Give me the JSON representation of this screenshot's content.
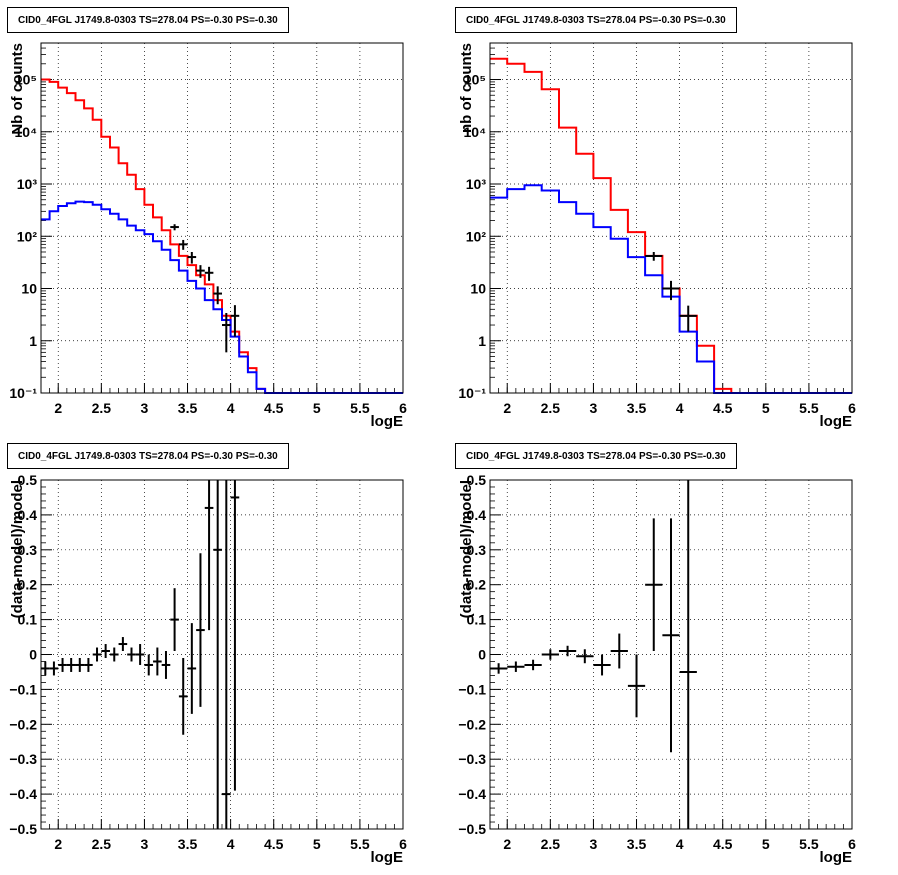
{
  "chart_data": [
    {
      "type": "line",
      "title": "CID0_4FGL J1749.8-0303 TS=278.04 PS=-0.30 PS=-0.30",
      "xlabel": "logE",
      "ylabel": "Nb of counts",
      "xlim": [
        1.8,
        6.0
      ],
      "ylim": [
        0.1,
        500000
      ],
      "yscale": "log",
      "grid": true,
      "xticks": [
        "2",
        "2.5",
        "3",
        "3.5",
        "4",
        "4.5",
        "5",
        "5.5",
        "6"
      ],
      "yticks": [
        "10⁻¹",
        "1",
        "10",
        "10²",
        "10³",
        "10⁴",
        "10⁵"
      ],
      "series": [
        {
          "color": "#ff0000",
          "style": "step",
          "bin_width": 0.1,
          "x": [
            1.8,
            1.9,
            2.0,
            2.1,
            2.2,
            2.3,
            2.4,
            2.5,
            2.6,
            2.7,
            2.8,
            2.9,
            3.0,
            3.1,
            3.2,
            3.3,
            3.4,
            3.5,
            3.6,
            3.7,
            3.8,
            3.9,
            4.0,
            4.1,
            4.2,
            4.3,
            4.4,
            4.5,
            4.6,
            4.7,
            4.8,
            4.9,
            5.0,
            5.1,
            5.2,
            5.3,
            5.4,
            5.5,
            5.6,
            5.7,
            5.8,
            5.9
          ],
          "values": [
            100000,
            90000,
            70000,
            55000,
            40000,
            28000,
            17000,
            8000,
            5000,
            2500,
            1500,
            800,
            400,
            230,
            130,
            70,
            42,
            28,
            18,
            12,
            6,
            3,
            1.5,
            0.6,
            0.3,
            0.12,
            0.1,
            0.1,
            0.1,
            0.1,
            0.1,
            0.1,
            0.1,
            0.1,
            0.1,
            0.1,
            0.1,
            0.1,
            0.1,
            0.1,
            0.1,
            0.1
          ]
        },
        {
          "color": "#0000ff",
          "style": "step",
          "bin_width": 0.1,
          "x": [
            1.8,
            1.9,
            2.0,
            2.1,
            2.2,
            2.3,
            2.4,
            2.5,
            2.6,
            2.7,
            2.8,
            2.9,
            3.0,
            3.1,
            3.2,
            3.3,
            3.4,
            3.5,
            3.6,
            3.7,
            3.8,
            3.9,
            4.0,
            4.1,
            4.2,
            4.3,
            4.4,
            4.5,
            4.6,
            4.7,
            4.8,
            4.9,
            5.0,
            5.1,
            5.2,
            5.3,
            5.4,
            5.5,
            5.6,
            5.7,
            5.8,
            5.9
          ],
          "values": [
            210,
            300,
            380,
            430,
            460,
            450,
            400,
            330,
            270,
            210,
            160,
            130,
            110,
            80,
            55,
            35,
            22,
            14,
            10,
            6,
            4,
            2.5,
            1.2,
            0.5,
            0.25,
            0.12,
            0.1,
            0.1,
            0.1,
            0.1,
            0.1,
            0.1,
            0.1,
            0.1,
            0.1,
            0.1,
            0.1,
            0.1,
            0.1,
            0.1,
            0.1,
            0.1
          ]
        }
      ],
      "points": {
        "color": "#000000",
        "x": [
          3.35,
          3.45,
          3.55,
          3.65,
          3.75,
          3.85,
          3.95,
          4.05
        ],
        "y": [
          150,
          70,
          40,
          22,
          20,
          8,
          2,
          3
        ],
        "err_lo": [
          20,
          15,
          10,
          6,
          6,
          3,
          1.4,
          1.8
        ],
        "err_hi": [
          20,
          15,
          10,
          6,
          6,
          3,
          1.4,
          1.8
        ],
        "xerr": 0.05
      }
    },
    {
      "type": "line",
      "title": "CID0_4FGL J1749.8-0303 TS=278.04 PS=-0.30 PS=-0.30",
      "xlabel": "logE",
      "ylabel": "nb of counts",
      "xlim": [
        1.8,
        6.0
      ],
      "ylim": [
        0.1,
        500000
      ],
      "yscale": "log",
      "grid": true,
      "xticks": [
        "2",
        "2.5",
        "3",
        "3.5",
        "4",
        "4.5",
        "5",
        "5.5",
        "6"
      ],
      "yticks": [
        "10⁻¹",
        "1",
        "10",
        "10²",
        "10³",
        "10⁴",
        "10⁵"
      ],
      "series": [
        {
          "color": "#ff0000",
          "style": "step",
          "bin_width": 0.2,
          "x": [
            1.8,
            2.0,
            2.2,
            2.4,
            2.6,
            2.8,
            3.0,
            3.2,
            3.4,
            3.6,
            3.8,
            4.0,
            4.2,
            4.4,
            4.6,
            4.8,
            5.0,
            5.2,
            5.4,
            5.6,
            5.8
          ],
          "values": [
            250000,
            200000,
            140000,
            65000,
            12000,
            3800,
            1300,
            320,
            120,
            42,
            10,
            3,
            0.8,
            0.12,
            0.1,
            0.1,
            0.1,
            0.1,
            0.1,
            0.1,
            0.1
          ]
        },
        {
          "color": "#0000ff",
          "style": "step",
          "bin_width": 0.2,
          "x": [
            1.8,
            2.0,
            2.2,
            2.4,
            2.6,
            2.8,
            3.0,
            3.2,
            3.4,
            3.6,
            3.8,
            4.0,
            4.2,
            4.4,
            4.6,
            4.8,
            5.0,
            5.2,
            5.4,
            5.6,
            5.8
          ],
          "values": [
            550,
            800,
            950,
            750,
            450,
            270,
            150,
            90,
            40,
            18,
            7,
            1.5,
            0.4,
            0.1,
            0.1,
            0.1,
            0.1,
            0.1,
            0.1,
            0.1,
            0.1
          ]
        }
      ],
      "points": {
        "color": "#000000",
        "x": [
          3.7,
          3.9,
          4.1
        ],
        "y": [
          42,
          10,
          3
        ],
        "err_lo": [
          8,
          4,
          1.5
        ],
        "err_hi": [
          8,
          4,
          1.7
        ],
        "xerr": 0.1
      }
    },
    {
      "type": "scatter",
      "title": "CID0_4FGL J1749.8-0303 TS=278.04 PS=-0.30 PS=-0.30",
      "xlabel": "logE",
      "ylabel": "(data-model)/model",
      "xlim": [
        1.8,
        6.0
      ],
      "ylim": [
        -0.5,
        0.5
      ],
      "grid": true,
      "xticks": [
        "2",
        "2.5",
        "3",
        "3.5",
        "4",
        "4.5",
        "5",
        "5.5",
        "6"
      ],
      "yticks": [
        "−0.5",
        "−0.4",
        "−0.3",
        "−0.2",
        "−0.1",
        "0",
        "0.1",
        "0.2",
        "0.3",
        "0.4",
        "0.5"
      ],
      "points": {
        "color": "#000000",
        "xerr": 0.05,
        "x": [
          1.85,
          1.95,
          2.05,
          2.15,
          2.25,
          2.35,
          2.45,
          2.55,
          2.65,
          2.75,
          2.85,
          2.95,
          3.05,
          3.15,
          3.25,
          3.35,
          3.45,
          3.55,
          3.65,
          3.75,
          3.85,
          3.95,
          4.05
        ],
        "y": [
          -0.04,
          -0.04,
          -0.03,
          -0.03,
          -0.03,
          -0.03,
          0.0,
          0.01,
          0.0,
          0.03,
          0.0,
          0.0,
          -0.03,
          -0.02,
          -0.03,
          0.1,
          -0.12,
          -0.04,
          0.07,
          0.42,
          0.3,
          -0.4,
          0.45
        ],
        "err_lo": [
          0.02,
          0.02,
          0.02,
          0.02,
          0.02,
          0.02,
          0.02,
          0.02,
          0.02,
          0.02,
          0.02,
          0.03,
          0.03,
          0.04,
          0.04,
          0.09,
          0.11,
          0.13,
          0.22,
          0.35,
          0.8,
          0.9,
          0.84
        ],
        "err_hi": [
          0.02,
          0.02,
          0.02,
          0.02,
          0.02,
          0.02,
          0.02,
          0.02,
          0.02,
          0.02,
          0.02,
          0.03,
          0.03,
          0.04,
          0.04,
          0.09,
          0.11,
          0.13,
          0.22,
          0.35,
          0.8,
          0.9,
          0.84
        ]
      }
    },
    {
      "type": "scatter",
      "title": "CID0_4FGL J1749.8-0303 TS=278.04 PS=-0.30 PS=-0.30",
      "xlabel": "logE",
      "ylabel": "(data-model)/model",
      "xlim": [
        1.8,
        6.0
      ],
      "ylim": [
        -0.5,
        0.5
      ],
      "grid": true,
      "xticks": [
        "2",
        "2.5",
        "3",
        "3.5",
        "4",
        "4.5",
        "5",
        "5.5",
        "6"
      ],
      "yticks": [
        "−0.5",
        "−0.4",
        "−0.3",
        "−0.2",
        "−0.1",
        "0",
        "0.1",
        "0.2",
        "0.3",
        "0.4",
        "0.5"
      ],
      "points": {
        "color": "#000000",
        "xerr": 0.1,
        "x": [
          1.9,
          2.1,
          2.3,
          2.5,
          2.7,
          2.9,
          3.1,
          3.3,
          3.5,
          3.7,
          3.9,
          4.1
        ],
        "y": [
          -0.04,
          -0.035,
          -0.03,
          0.0,
          0.01,
          -0.005,
          -0.03,
          0.01,
          -0.09,
          0.2,
          0.055,
          -0.05
        ],
        "err_lo": [
          0.015,
          0.015,
          0.015,
          0.015,
          0.015,
          0.02,
          0.03,
          0.05,
          0.09,
          0.19,
          0.335,
          0.9
        ],
        "err_hi": [
          0.015,
          0.015,
          0.015,
          0.015,
          0.015,
          0.02,
          0.03,
          0.05,
          0.09,
          0.19,
          0.335,
          0.9
        ]
      }
    }
  ]
}
